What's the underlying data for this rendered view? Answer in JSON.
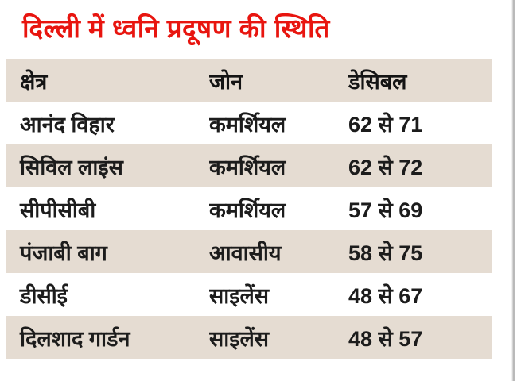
{
  "page": {
    "background": "#ffffff",
    "accent_red": "#e8150f",
    "row_beige": "#e5dcd2",
    "text_black": "#1c1c1c"
  },
  "title": "दिल्ली में ध्वनि प्रदूषण की स्थिति",
  "chart_data": {
    "type": "table",
    "title": "दिल्ली में ध्वनि प्रदूषण की स्थिति",
    "title_translation": "Status of noise pollution in Delhi",
    "columns": [
      "क्षेत्र",
      "जोन",
      "डेसिबल"
    ],
    "columns_translation": [
      "Area",
      "Zone",
      "Decibel"
    ],
    "rows": [
      [
        "आनंद विहार",
        "कमर्शियल",
        "62 से 71"
      ],
      [
        "सिविल लाइंस",
        "कमर्शियल",
        "62 से 72"
      ],
      [
        "सीपीसीबी",
        "कमर्शियल",
        "57 से 69"
      ],
      [
        "पंजाबी बाग",
        "आवासीय",
        "58 से 75"
      ],
      [
        "डीसीई",
        "साइलेंस",
        "48 से 67"
      ],
      [
        "दिलशाद गार्डन",
        "साइलेंस",
        "48 से 57"
      ]
    ],
    "decibel_ranges": [
      {
        "min": 62,
        "max": 71
      },
      {
        "min": 62,
        "max": 72
      },
      {
        "min": 57,
        "max": 69
      },
      {
        "min": 58,
        "max": 75
      },
      {
        "min": 48,
        "max": 67
      },
      {
        "min": 48,
        "max": 57
      }
    ],
    "layout": {
      "alternating_row_colors": [
        "#ffffff",
        "#e5dcd2"
      ],
      "header_background": "#e5dcd2",
      "grid": false
    }
  }
}
